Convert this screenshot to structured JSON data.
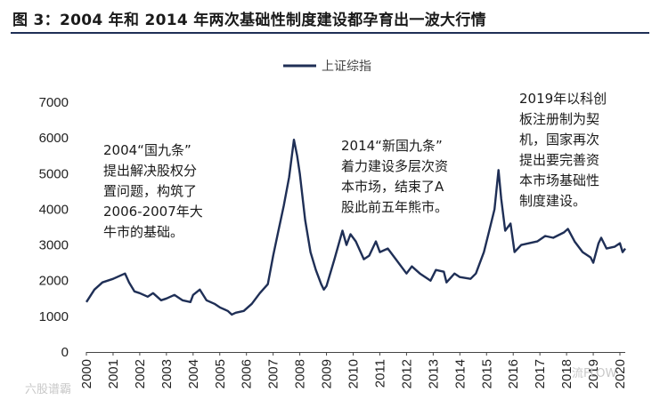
{
  "figure_title": "图 3：2004 年和 2014 年两次基础性制度建设都孕育出一波大行情",
  "chart_data": {
    "type": "line",
    "xlabel": "",
    "ylabel": "",
    "ylim": [
      0,
      7000
    ],
    "yticks": [
      0,
      1000,
      2000,
      3000,
      4000,
      5000,
      6000,
      7000
    ],
    "xlim": [
      2000,
      2020.2
    ],
    "xticks": [
      "2000",
      "2001",
      "2002",
      "2003",
      "2004",
      "2005",
      "2006",
      "2007",
      "2008",
      "2009",
      "2010",
      "2011",
      "2012",
      "2013",
      "2014",
      "2015",
      "2016",
      "2017",
      "2018",
      "2019",
      "2020"
    ],
    "legend": {
      "position": "top-center"
    },
    "series": [
      {
        "name": "上证综指",
        "color": "#1f2f56",
        "x": [
          2000.0,
          2000.3,
          2000.6,
          2001.0,
          2001.3,
          2001.45,
          2001.6,
          2001.8,
          2002.0,
          2002.3,
          2002.5,
          2002.8,
          2003.0,
          2003.3,
          2003.6,
          2003.9,
          2004.0,
          2004.25,
          2004.5,
          2004.8,
          2005.0,
          2005.3,
          2005.45,
          2005.6,
          2005.9,
          2006.2,
          2006.5,
          2006.8,
          2007.0,
          2007.2,
          2007.4,
          2007.6,
          2007.78,
          2007.9,
          2008.0,
          2008.2,
          2008.4,
          2008.6,
          2008.8,
          2008.9,
          2009.0,
          2009.3,
          2009.6,
          2009.75,
          2009.9,
          2010.1,
          2010.4,
          2010.6,
          2010.85,
          2011.0,
          2011.3,
          2011.6,
          2011.9,
          2012.0,
          2012.2,
          2012.5,
          2012.9,
          2013.1,
          2013.4,
          2013.5,
          2013.8,
          2014.0,
          2014.4,
          2014.6,
          2014.9,
          2015.1,
          2015.3,
          2015.45,
          2015.55,
          2015.7,
          2015.9,
          2016.05,
          2016.3,
          2016.6,
          2016.9,
          2017.2,
          2017.5,
          2017.9,
          2018.05,
          2018.3,
          2018.6,
          2018.9,
          2019.0,
          2019.2,
          2019.3,
          2019.5,
          2019.8,
          2020.0,
          2020.1,
          2020.2
        ],
        "values": [
          1400,
          1750,
          1950,
          2050,
          2150,
          2200,
          1950,
          1700,
          1650,
          1550,
          1650,
          1450,
          1500,
          1600,
          1450,
          1400,
          1600,
          1750,
          1450,
          1350,
          1250,
          1150,
          1050,
          1100,
          1150,
          1350,
          1650,
          1900,
          2700,
          3400,
          4100,
          4900,
          5950,
          5500,
          5000,
          3700,
          2800,
          2300,
          1900,
          1750,
          1850,
          2600,
          3400,
          3000,
          3300,
          3100,
          2600,
          2700,
          3100,
          2800,
          2900,
          2600,
          2300,
          2200,
          2400,
          2200,
          2000,
          2300,
          2250,
          1950,
          2200,
          2100,
          2050,
          2200,
          2800,
          3400,
          4000,
          5100,
          4300,
          3400,
          3600,
          2800,
          3000,
          3050,
          3100,
          3250,
          3200,
          3350,
          3450,
          3100,
          2800,
          2650,
          2500,
          3050,
          3200,
          2900,
          2950,
          3050,
          2800,
          2900
        ]
      }
    ],
    "annotations": [
      "2004“国九条”\n提出解决股权分\n置问题，构筑了\n2006-2007年大\n牛市的基础。",
      "2014“新国九条”\n着力建设多层次资\n本市场，结束了A\n股此前五年熊市。",
      "2019年以科创\n板注册制为契\n机，国家再次\n提出要完善资\n本市场基础性\n制度建设。"
    ]
  },
  "watermarks": {
    "left": "六股谱霸",
    "right": "流FLOW"
  }
}
